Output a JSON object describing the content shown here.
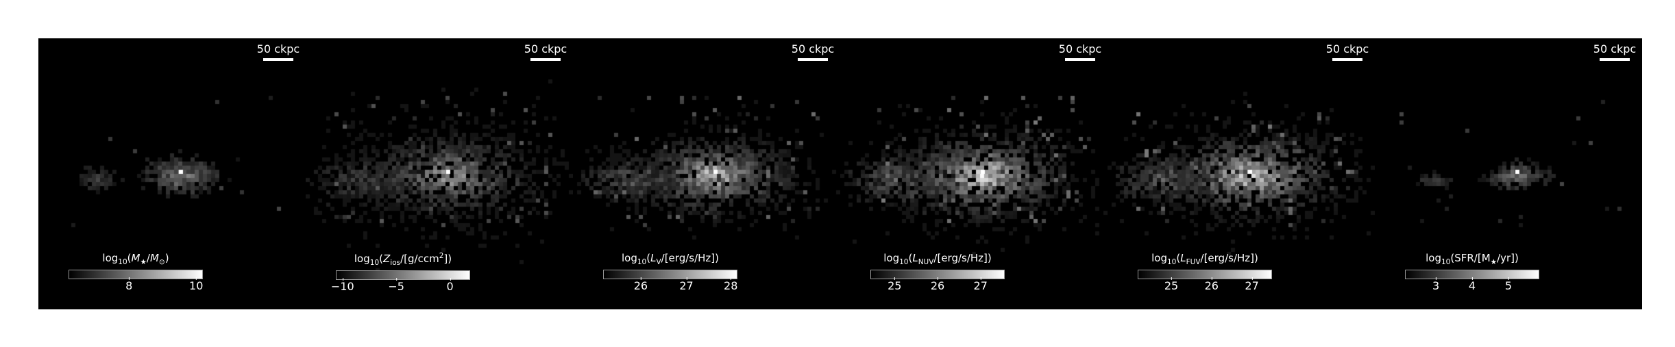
{
  "scalebar_label": "50 ckpc",
  "panels": [
    {
      "id": "stellar-mass",
      "label_parts": [
        "log",
        "10",
        "(",
        "M",
        "★",
        "/",
        "M",
        "⊙",
        ")"
      ],
      "ticks": [
        {
          "v": "8",
          "f": 0.45
        },
        {
          "v": "10",
          "f": 0.95
        }
      ]
    },
    {
      "id": "metal-column",
      "label_parts": [
        "log",
        "10",
        "(",
        "Z",
        "ios",
        "/[g/ccm",
        "2",
        "])"
      ],
      "ticks": [
        {
          "v": "−10",
          "f": 0.05
        },
        {
          "v": "−5",
          "f": 0.45
        },
        {
          "v": "0",
          "f": 0.85
        }
      ]
    },
    {
      "id": "v-band",
      "label_parts": [
        "log",
        "10",
        "(",
        "L",
        "V",
        "/[erg/s/Hz])"
      ],
      "ticks": [
        {
          "v": "26",
          "f": 0.28
        },
        {
          "v": "27",
          "f": 0.62
        },
        {
          "v": "28",
          "f": 0.95
        }
      ]
    },
    {
      "id": "nuv",
      "label_parts": [
        "log",
        "10",
        "(",
        "L",
        "NUV",
        "/[erg/s/Hz])"
      ],
      "ticks": [
        {
          "v": "25",
          "f": 0.18
        },
        {
          "v": "26",
          "f": 0.5
        },
        {
          "v": "27",
          "f": 0.82
        }
      ]
    },
    {
      "id": "fuv",
      "label_parts": [
        "log",
        "10",
        "(",
        "L",
        "FUV",
        "/[erg/s/Hz])"
      ],
      "ticks": [
        {
          "v": "25",
          "f": 0.25
        },
        {
          "v": "26",
          "f": 0.55
        },
        {
          "v": "27",
          "f": 0.85
        }
      ]
    },
    {
      "id": "sfr",
      "label_parts": [
        "log",
        "10",
        "(SFR/[M",
        "★",
        "/yr])"
      ],
      "ticks": [
        {
          "v": "3",
          "f": 0.23
        },
        {
          "v": "4",
          "f": 0.5
        },
        {
          "v": "5",
          "f": 0.77
        }
      ]
    }
  ]
}
